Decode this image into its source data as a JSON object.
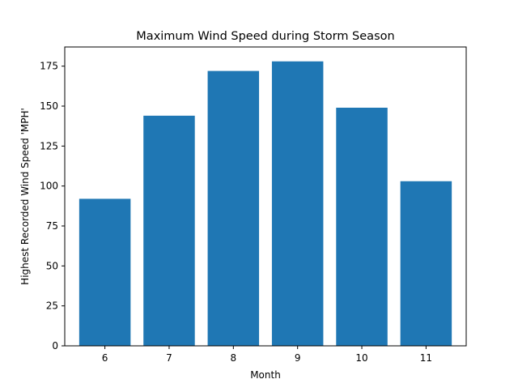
{
  "chart_data": {
    "type": "bar",
    "title": "Maximum Wind Speed during Storm Season",
    "xlabel": "Month",
    "ylabel": "Highest Recorded Wind Speed 'MPH'",
    "categories": [
      "6",
      "7",
      "8",
      "9",
      "10",
      "11"
    ],
    "values": [
      92,
      144,
      172,
      178,
      149,
      103
    ],
    "ylim": [
      0,
      187
    ],
    "yticks": [
      0,
      25,
      50,
      75,
      100,
      125,
      150,
      175
    ],
    "grid": false,
    "legend": "none",
    "bar_color": "#1f77b4"
  }
}
